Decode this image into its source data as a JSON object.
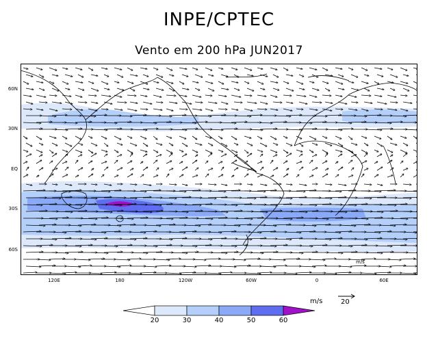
{
  "header": {
    "title": "INPE/CPTEC",
    "subtitle": "Vento em 200 hPa JUN2017"
  },
  "map": {
    "lat_labels": [
      "60N",
      "30N",
      "EQ",
      "30S",
      "60S"
    ],
    "lon_labels": [
      "120E",
      "180",
      "120W",
      "60W",
      "0",
      "60E"
    ],
    "inset_label": "m/s"
  },
  "legend": {
    "units": "m/s",
    "reference_vector": "20",
    "ticks": [
      "20",
      "30",
      "40",
      "50",
      "60"
    ],
    "colors": [
      "#ffffff",
      "#dde9fb",
      "#b4cffa",
      "#8aa9f7",
      "#5f6ef0",
      "#a012c8"
    ]
  }
}
